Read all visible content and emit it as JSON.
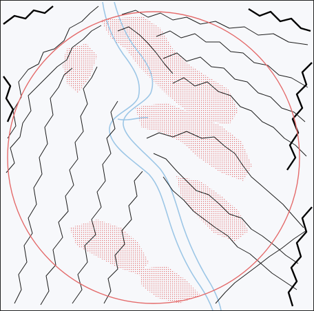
{
  "map": {
    "colors": {
      "paper": "#f7f8fb",
      "contour": "#1b1b1b",
      "contour_bold": "#000000",
      "river": "#9cc6e6",
      "slope_hatch": "#e05a5a",
      "study_circle": "#e46a6a",
      "frame": "#222222"
    },
    "layers": [
      "contour-lines",
      "river-channels",
      "slope-hatching",
      "study-area-circle"
    ]
  }
}
